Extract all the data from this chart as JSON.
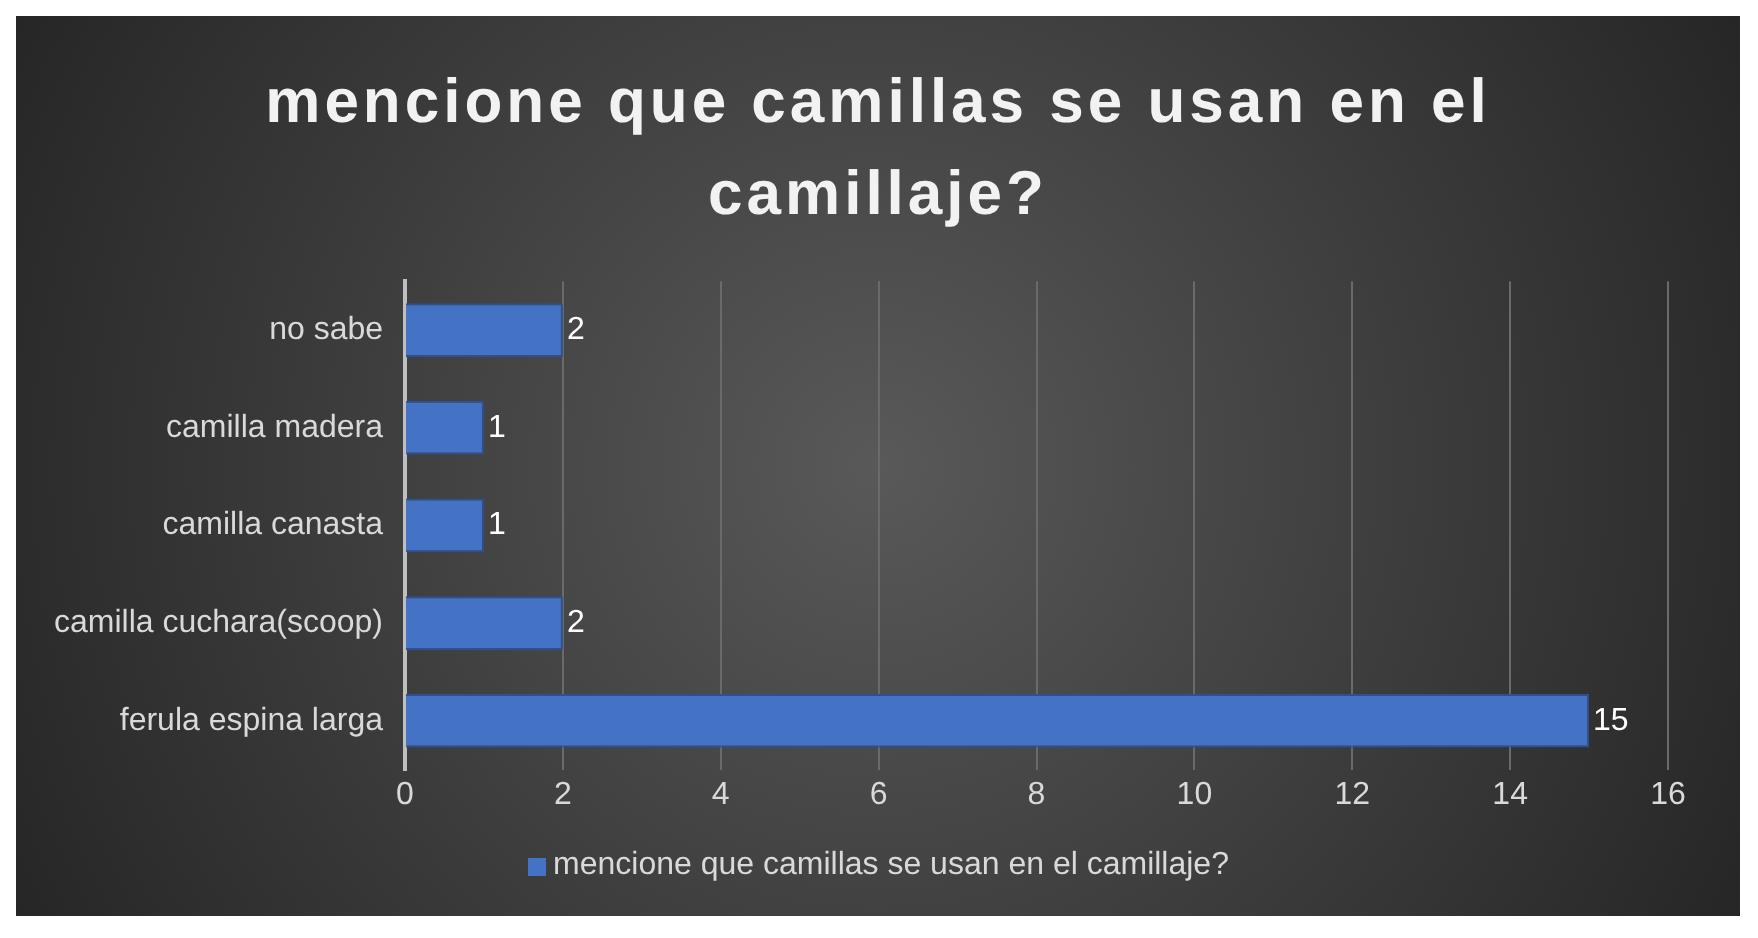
{
  "chart_data": {
    "type": "bar",
    "orientation": "horizontal",
    "title": "mencione que camillas se usan en el camillaje?",
    "categories": [
      "no sabe",
      "camilla madera",
      "camilla canasta",
      "camilla cuchara(scoop)",
      "ferula espina larga"
    ],
    "series": [
      {
        "name": "mencione que camillas se usan en el camillaje?",
        "color": "#4472c4",
        "values": [
          2,
          1,
          1,
          2,
          15
        ]
      }
    ],
    "xlim": [
      0,
      16
    ],
    "xticks": [
      0,
      2,
      4,
      6,
      8,
      10,
      12,
      14,
      16
    ],
    "grid": "x",
    "legend": "bottom",
    "data_labels": true
  }
}
